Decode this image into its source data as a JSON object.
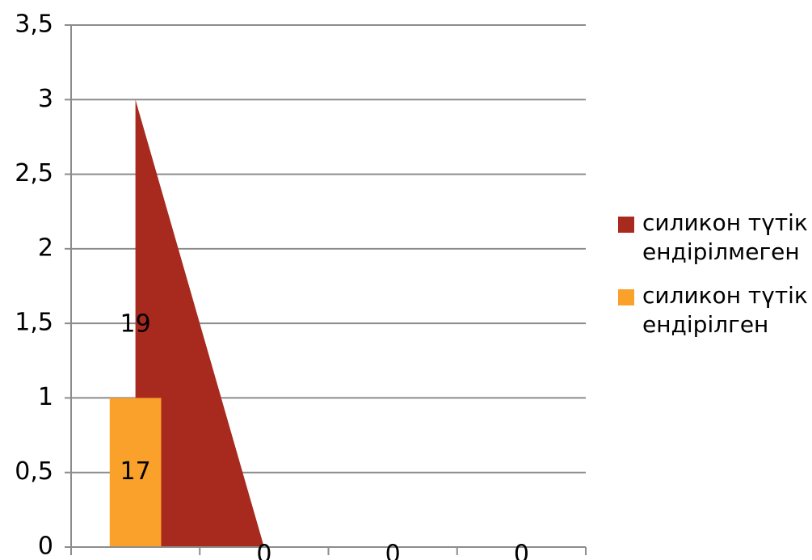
{
  "chart_data": {
    "type": "combo",
    "categories": [
      null,
      null,
      null,
      null
    ],
    "series": [
      {
        "name": "силикон түтік ендірілмеген",
        "color": "#a8291e",
        "type": "area",
        "values": [
          3,
          0,
          0,
          0
        ]
      },
      {
        "name": "силикон түтік ендірілген",
        "color": "#f9a12a",
        "type": "bar",
        "values": [
          1,
          null,
          null,
          null
        ]
      }
    ],
    "annotations": [
      "19",
      "17",
      "0",
      "0",
      "0"
    ],
    "ylim": [
      0,
      3.5
    ],
    "yticks": [
      0,
      {
        "value": 0.5,
        "label": "0,5"
      },
      1,
      {
        "value": 1.5,
        "label": "1,5"
      },
      2,
      {
        "value": 2.5,
        "label": "2,5"
      },
      3,
      {
        "value": 3.5,
        "label": "3,5"
      }
    ],
    "grid": true,
    "legend": "right"
  }
}
